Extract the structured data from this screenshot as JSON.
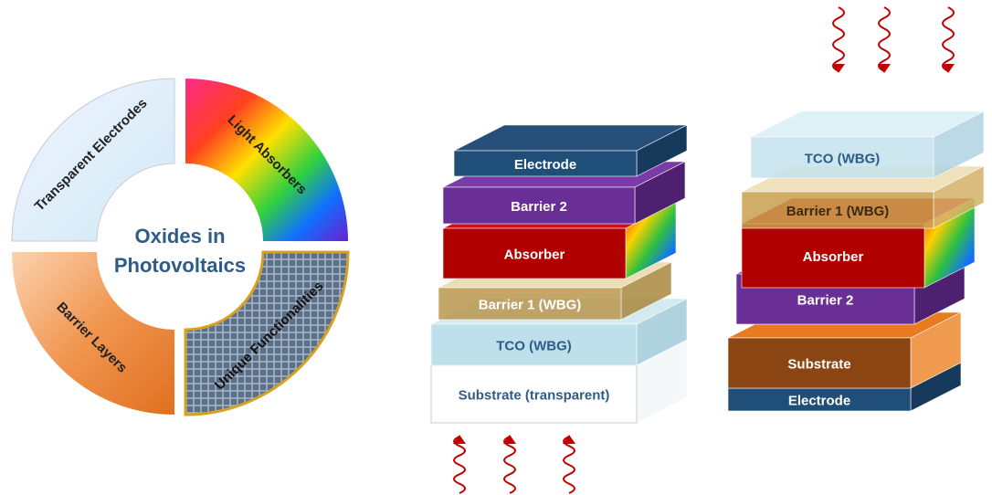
{
  "ring": {
    "center_lines": [
      "Oxides in",
      "Photovoltaics"
    ],
    "segments": [
      "Transparent Electrodes",
      "Light Absorbers",
      "Barrier Layers",
      "Unique Functionalities"
    ]
  },
  "stack_left": {
    "layers": [
      "Electrode",
      "Barrier 2",
      "Absorber",
      "Barrier 1 (WBG)",
      "TCO (WBG)",
      "Substrate (transparent)"
    ]
  },
  "stack_right": {
    "layers": [
      "TCO (WBG)",
      "Barrier 1 (WBG)",
      "Absorber",
      "Barrier 2",
      "Substrate",
      "Electrode"
    ]
  }
}
